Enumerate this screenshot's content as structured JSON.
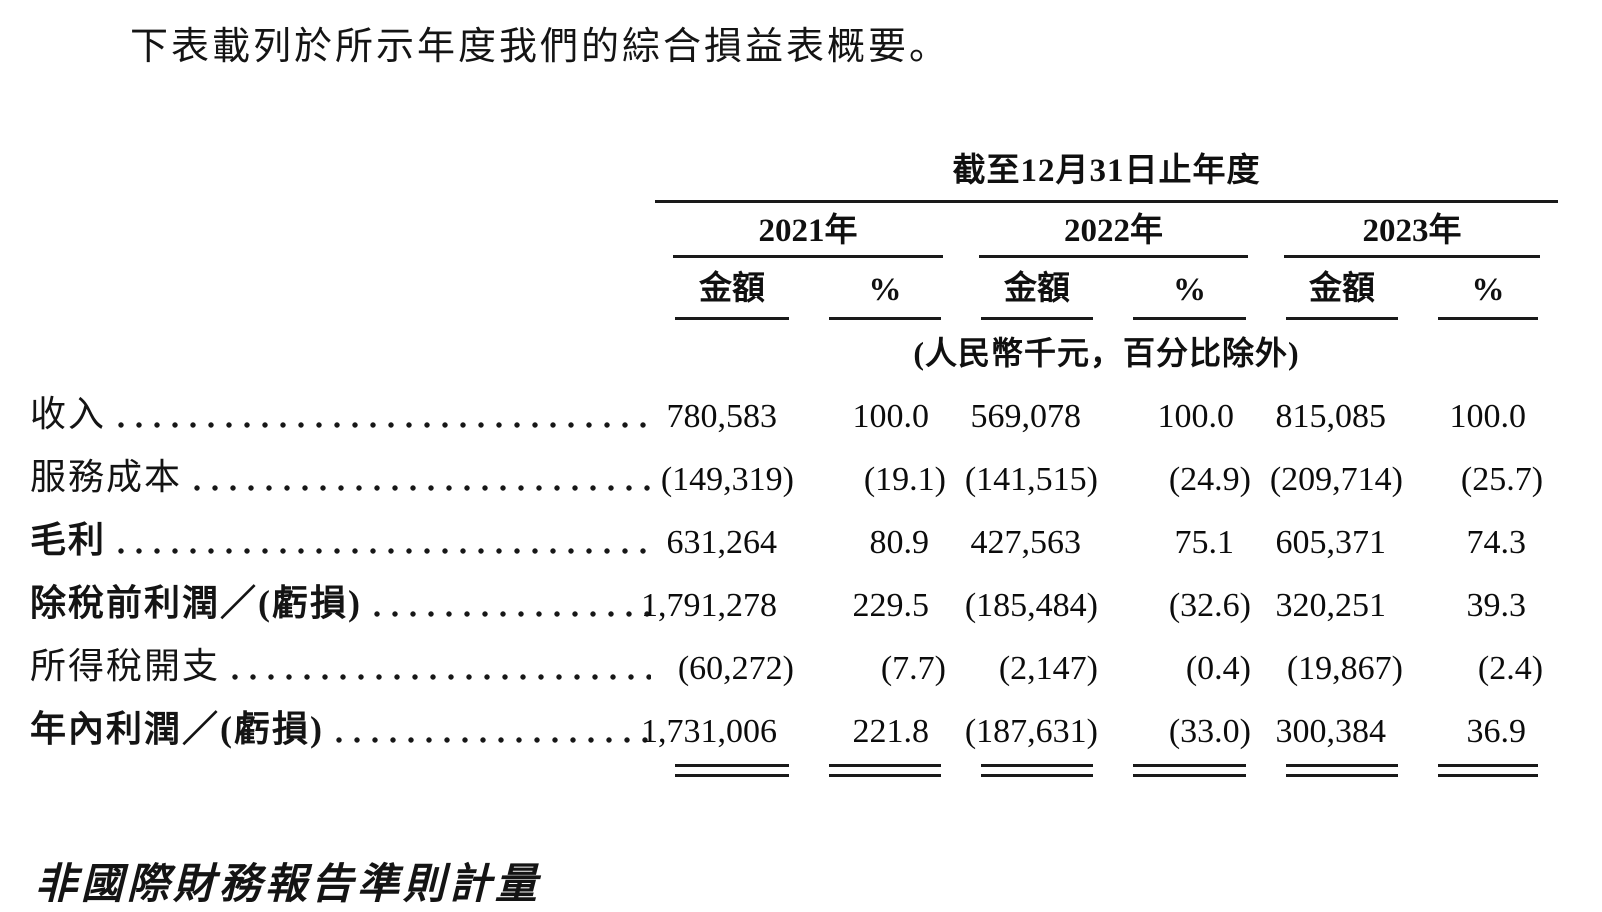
{
  "intro": "下表載列於所示年度我們的綜合損益表概要。",
  "table": {
    "period_header": "截至12月31日止年度",
    "unit_note": "(人民幣千元，百分比除外)",
    "year_groups": [
      {
        "label": "2021年"
      },
      {
        "label": "2022年"
      },
      {
        "label": "2023年"
      }
    ],
    "sub_headers": {
      "amount": "金額",
      "percent": "%"
    },
    "rows": [
      {
        "label": "收入",
        "bold": false,
        "values": [
          "780,583",
          "100.0",
          "569,078",
          "100.0",
          "815,085",
          "100.0"
        ]
      },
      {
        "label": "服務成本",
        "bold": false,
        "values": [
          "(149,319)",
          "(19.1)",
          "(141,515)",
          "(24.9)",
          "(209,714)",
          "(25.7)"
        ]
      },
      {
        "label": "毛利",
        "bold": true,
        "values": [
          "631,264",
          "80.9",
          "427,563",
          "75.1",
          "605,371",
          "74.3"
        ]
      },
      {
        "label": "除稅前利潤／(虧損)",
        "bold": true,
        "values": [
          "1,791,278",
          "229.5",
          "(185,484)",
          "(32.6)",
          "320,251",
          "39.3"
        ]
      },
      {
        "label": "所得稅開支",
        "bold": false,
        "values": [
          "(60,272)",
          "(7.7)",
          "(2,147)",
          "(0.4)",
          "(19,867)",
          "(2.4)"
        ]
      },
      {
        "label": "年內利潤／(虧損)",
        "bold": true,
        "values": [
          "1,731,006",
          "221.8",
          "(187,631)",
          "(33.0)",
          "300,384",
          "36.9"
        ]
      }
    ]
  },
  "footer_heading": "非國際財務報告準則計量"
}
